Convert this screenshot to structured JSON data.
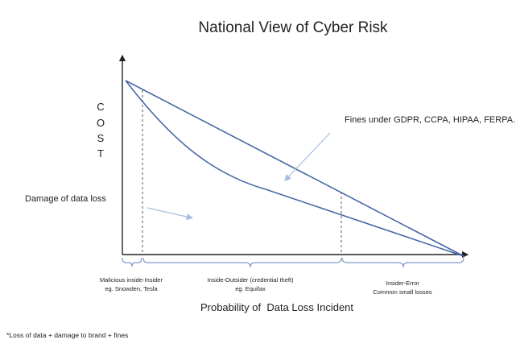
{
  "title": "National View of Cyber Risk",
  "y_axis_label": [
    "C",
    "O",
    "S",
    "T"
  ],
  "x_axis_label": "Probability of  Data Loss Incident",
  "annotations": {
    "fines": "Fines under GDPR, CCPA, HIPAA, FERPA…",
    "damage": "Damage of data loss"
  },
  "segments": [
    {
      "lines": [
        "Malicious inside-Insider",
        "eg. Snowden, Tesla"
      ]
    },
    {
      "lines": [
        "Inside-Outsider (credential theft)",
        "eg. Equifax"
      ]
    },
    {
      "lines": [
        "Insider-Error",
        "Common small losses"
      ]
    }
  ],
  "footnote": "*Loss of data + damage to brand + fines",
  "colors": {
    "line": "#4a67a8",
    "axis": "#222222",
    "bracket": "#7f9bc9",
    "arrow": "#a9bde0"
  }
}
